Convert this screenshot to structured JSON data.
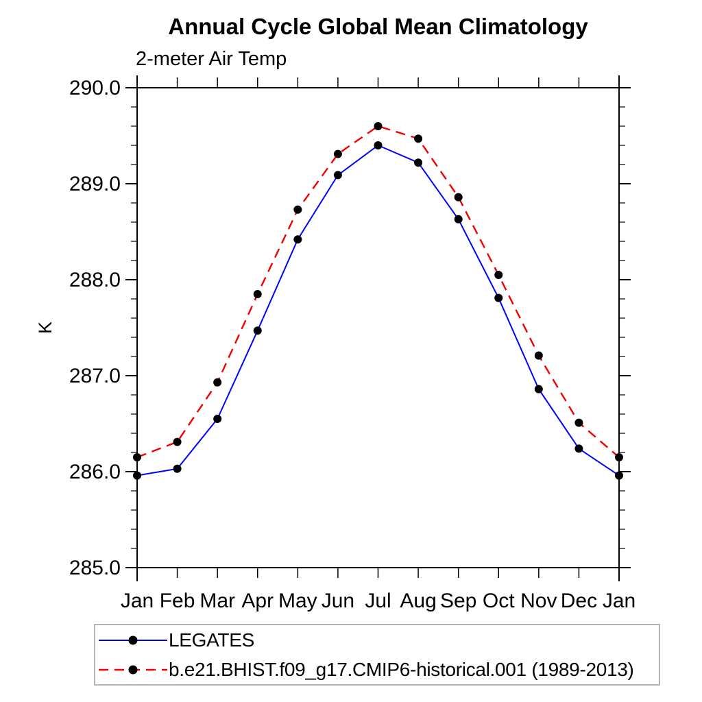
{
  "chart_data": {
    "type": "line",
    "title": "Annual Cycle Global Mean Climatology",
    "subtitle": "2-meter Air Temp",
    "ylabel": "K",
    "ylim": [
      285.0,
      290.0
    ],
    "ytick_major_step": 1.0,
    "ytick_minor_step": 0.2,
    "ytick_labels": [
      "285.0",
      "286.0",
      "287.0",
      "288.0",
      "289.0",
      "290.0"
    ],
    "categories": [
      "Jan",
      "Feb",
      "Mar",
      "Apr",
      "May",
      "Jun",
      "Jul",
      "Aug",
      "Sep",
      "Oct",
      "Nov",
      "Dec",
      "Jan"
    ],
    "grid": false,
    "legend_position": "bottom-left-outside",
    "axis_color": "#000000",
    "legend_border_color": "#b3b3b3",
    "series": [
      {
        "name": "LEGATES",
        "line_color": "#0000ff",
        "line_style": "solid",
        "marker": "filled-circle",
        "marker_color": "#000000",
        "values": [
          285.96,
          286.03,
          286.55,
          287.47,
          288.42,
          289.09,
          289.4,
          289.22,
          288.63,
          287.81,
          286.86,
          286.24,
          285.96
        ]
      },
      {
        "name": "b.e21.BHIST.f09_g17.CMIP6-historical.001 (1989-2013)",
        "line_color": "#f20000",
        "line_style": "dashed",
        "marker": "filled-circle",
        "marker_color": "#000000",
        "values": [
          286.15,
          286.31,
          286.93,
          287.85,
          288.73,
          289.31,
          289.6,
          289.47,
          288.86,
          288.05,
          287.21,
          286.51,
          286.15
        ]
      }
    ]
  }
}
